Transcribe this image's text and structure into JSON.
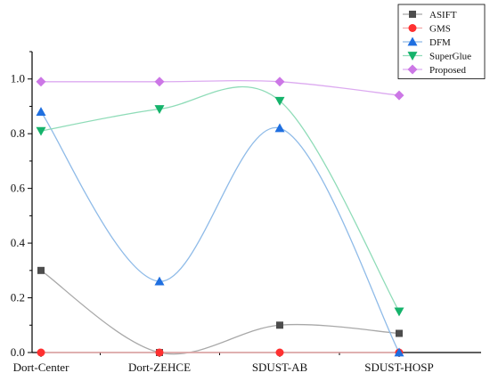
{
  "chart_data": {
    "type": "line",
    "categories": [
      "Dort-Center",
      "Dort-ZEHCE",
      "SDUST-AB",
      "SDUST-HOSP"
    ],
    "ylim": [
      0,
      1.1
    ],
    "yticks": [
      "0.0",
      "0.2",
      "0.4",
      "0.6",
      "0.8",
      "1.0"
    ],
    "grid": false,
    "legend_position": "top-right",
    "series": [
      {
        "name": "ASIFT",
        "values": [
          0.3,
          0.0,
          0.1,
          0.07
        ],
        "color": "#4d4d4d",
        "line_color": "#a8a8a8",
        "marker": "square"
      },
      {
        "name": "GMS",
        "values": [
          0.0,
          0.0,
          0.0,
          0.0
        ],
        "color": "#ff3030",
        "line_color": "#f2a7a7",
        "marker": "circle"
      },
      {
        "name": "DFM",
        "values": [
          0.88,
          0.26,
          0.82,
          0.0
        ],
        "color": "#1f6fe0",
        "line_color": "#8fbbe8",
        "marker": "triangle-up"
      },
      {
        "name": "SuperGlue",
        "values": [
          0.81,
          0.89,
          0.92,
          0.15
        ],
        "color": "#15b36b",
        "line_color": "#8fdcb8",
        "marker": "triangle-down"
      },
      {
        "name": "Proposed",
        "values": [
          0.99,
          0.99,
          0.99,
          0.94
        ],
        "color": "#cc77e6",
        "line_color": "#dcaaf0",
        "marker": "diamond"
      }
    ]
  }
}
